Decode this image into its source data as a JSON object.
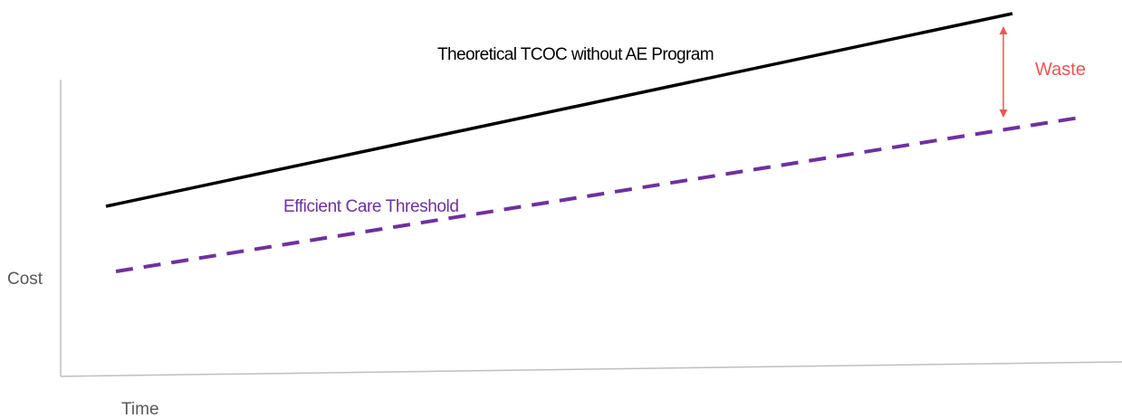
{
  "labels": {
    "y_axis": "Cost",
    "x_axis": "Time",
    "tcoc_line": "Theoretical TCOC without AE Program",
    "efficient_line": "Efficient Care Threshold",
    "waste": "Waste"
  },
  "colors": {
    "axis": "#bfbfbf",
    "axis_label": "#595959",
    "tcoc_line": "#000000",
    "efficient_line": "#7030a0",
    "waste": "#f05555"
  }
}
